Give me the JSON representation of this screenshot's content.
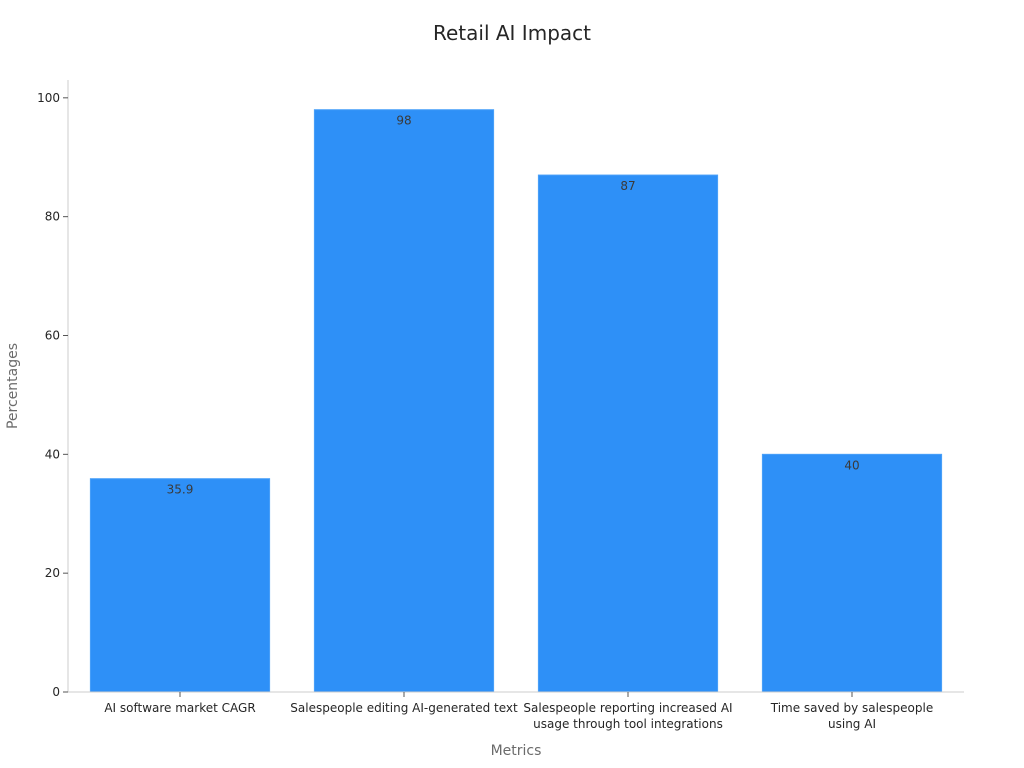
{
  "chart_data": {
    "type": "bar",
    "title": "Retail AI Impact",
    "xlabel": "Metrics",
    "ylabel": "Percentages",
    "categories": [
      [
        "AI software market CAGR"
      ],
      [
        "Salespeople editing AI-generated text"
      ],
      [
        "Salespeople reporting increased AI",
        "usage through tool integrations"
      ],
      [
        "Time saved by salespeople",
        "using AI"
      ]
    ],
    "values": [
      35.9,
      98,
      87,
      40
    ],
    "data_labels": [
      "35.9",
      "98",
      "87",
      "40"
    ],
    "ylim": [
      0,
      103
    ],
    "yticks": [
      0,
      20,
      40,
      60,
      80,
      100
    ],
    "grid": false,
    "legend": "none",
    "colors": {
      "bar": "#2e90f7",
      "bar_edge": "#4aa0f8",
      "axis": "#cccccc",
      "text": "#262626",
      "axis_label": "#6b6b6b"
    }
  }
}
